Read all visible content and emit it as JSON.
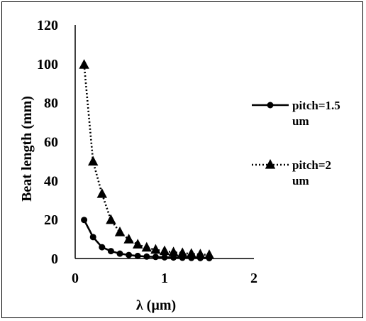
{
  "chart_data": {
    "type": "line",
    "title": "",
    "xlabel": "λ (µm)",
    "ylabel": "Beat length (mm)",
    "xlim": [
      0,
      2
    ],
    "ylim": [
      0,
      120
    ],
    "xticks": [
      0,
      1,
      2
    ],
    "yticks": [
      0,
      20,
      40,
      60,
      80,
      100,
      120
    ],
    "grid": false,
    "legend_position": "right",
    "series": [
      {
        "name": "pitch=1.5 um",
        "legend_lines": [
          "pitch=1.5",
          "um"
        ],
        "marker": "circle",
        "line_style": "solid",
        "color": "#000000",
        "x": [
          0.1,
          0.2,
          0.3,
          0.4,
          0.5,
          0.6,
          0.7,
          0.8,
          0.9,
          1.0,
          1.1,
          1.2,
          1.3,
          1.4,
          1.5
        ],
        "y": [
          19.8,
          11.0,
          5.8,
          3.8,
          2.5,
          1.8,
          1.3,
          1.0,
          0.8,
          0.6,
          0.5,
          0.4,
          0.3,
          0.25,
          0.2
        ]
      },
      {
        "name": "pitch=2 um",
        "legend_lines": [
          "pitch=2",
          "um"
        ],
        "marker": "triangle",
        "line_style": "dotted",
        "color": "#000000",
        "x": [
          0.1,
          0.2,
          0.3,
          0.4,
          0.5,
          0.6,
          0.7,
          0.8,
          0.9,
          1.0,
          1.1,
          1.2,
          1.3,
          1.4,
          1.5
        ],
        "y": [
          99.5,
          49.8,
          33.2,
          19.8,
          13.5,
          9.8,
          7.2,
          5.6,
          4.5,
          3.8,
          3.2,
          2.8,
          2.4,
          2.1,
          1.8
        ]
      }
    ]
  }
}
